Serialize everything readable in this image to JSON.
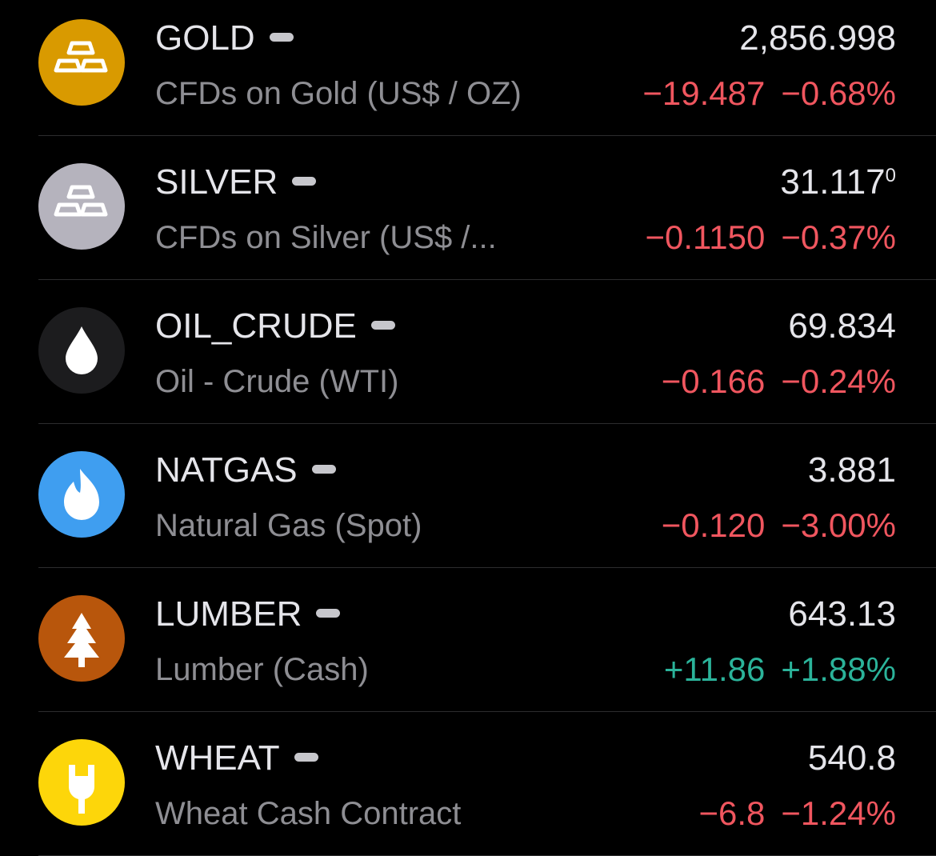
{
  "items": [
    {
      "symbol": "GOLD",
      "description": "CFDs on Gold (US$ / OZ)",
      "price": "2,856.998",
      "change": "−19.487",
      "change_percent": "−0.68%",
      "change_color": "#f0565f"
    },
    {
      "symbol": "SILVER",
      "description": "CFDs on Silver (US$ /...",
      "price": "31.117",
      "price_fraction": "0",
      "change": "−0.1150",
      "change_percent": "−0.37%",
      "change_color": "#f0565f"
    },
    {
      "symbol": "OIL_CRUDE",
      "description": "Oil - Crude (WTI)",
      "price": "69.834",
      "change": "−0.166",
      "change_percent": "−0.24%",
      "change_color": "#f0565f"
    },
    {
      "symbol": "NATGAS",
      "description": "Natural Gas (Spot)",
      "price": "3.881",
      "change": "−0.120",
      "change_percent": "−3.00%",
      "change_color": "#f0565f"
    },
    {
      "symbol": "LUMBER",
      "description": "Lumber (Cash)",
      "price": "643.13",
      "change": "+11.86",
      "change_percent": "+1.88%",
      "change_color": "#2bb39a"
    },
    {
      "symbol": "WHEAT",
      "description": "Wheat Cash Contract",
      "price": "540.8",
      "change": "−6.8",
      "change_percent": "−1.24%",
      "change_color": "#f0565f"
    }
  ]
}
